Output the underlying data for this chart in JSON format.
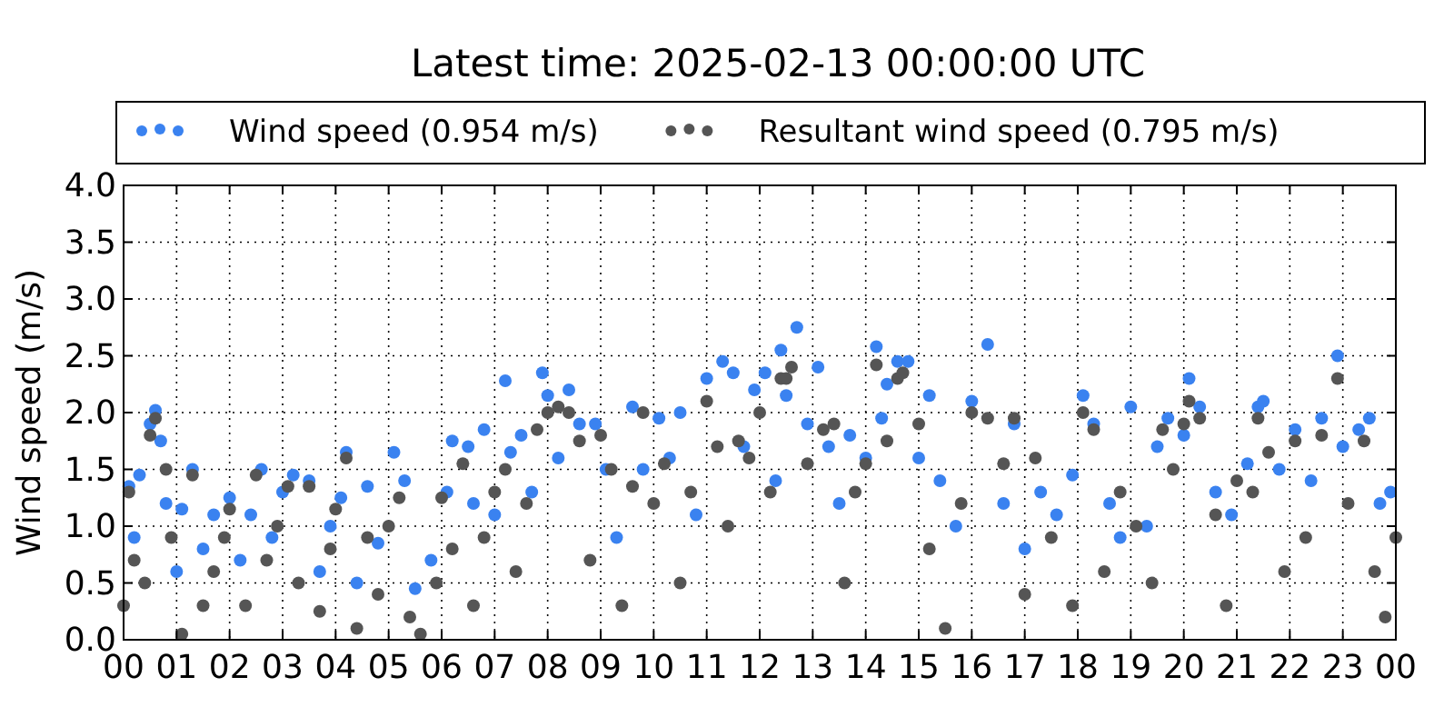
{
  "chart_data": {
    "type": "scatter",
    "title": "Latest time: 2025-02-13 00:00:00 UTC",
    "ylabel": "Wind speed (m/s)",
    "xlim": [
      0,
      24
    ],
    "xticks": [
      {
        "value": 0,
        "label": "00"
      },
      {
        "value": 1,
        "label": "01"
      },
      {
        "value": 2,
        "label": "02"
      },
      {
        "value": 3,
        "label": "03"
      },
      {
        "value": 4,
        "label": "04"
      },
      {
        "value": 5,
        "label": "05"
      },
      {
        "value": 6,
        "label": "06"
      },
      {
        "value": 7,
        "label": "07"
      },
      {
        "value": 8,
        "label": "08"
      },
      {
        "value": 9,
        "label": "09"
      },
      {
        "value": 10,
        "label": "10"
      },
      {
        "value": 11,
        "label": "11"
      },
      {
        "value": 12,
        "label": "12"
      },
      {
        "value": 13,
        "label": "13"
      },
      {
        "value": 14,
        "label": "14"
      },
      {
        "value": 15,
        "label": "15"
      },
      {
        "value": 16,
        "label": "16"
      },
      {
        "value": 17,
        "label": "17"
      },
      {
        "value": 18,
        "label": "18"
      },
      {
        "value": 19,
        "label": "19"
      },
      {
        "value": 20,
        "label": "20"
      },
      {
        "value": 21,
        "label": "21"
      },
      {
        "value": 22,
        "label": "22"
      },
      {
        "value": 23,
        "label": "23"
      },
      {
        "value": 24,
        "label": "00"
      }
    ],
    "ylim": [
      0,
      4
    ],
    "yticks": [
      {
        "value": 0,
        "label": "0.0"
      },
      {
        "value": 0.5,
        "label": "0.5"
      },
      {
        "value": 1,
        "label": "1.0"
      },
      {
        "value": 1.5,
        "label": "1.5"
      },
      {
        "value": 2,
        "label": "2.0"
      },
      {
        "value": 2.5,
        "label": "2.5"
      },
      {
        "value": 3,
        "label": "3.0"
      },
      {
        "value": 3.5,
        "label": "3.5"
      },
      {
        "value": 4,
        "label": "4.0"
      }
    ],
    "grid": true,
    "legend": "top",
    "marker": "circle",
    "series": [
      {
        "name": "Wind speed (0.954 m/s)",
        "color": "#3a82f0",
        "x": [
          0.1,
          0.2,
          0.3,
          0.5,
          0.6,
          0.7,
          0.8,
          1.0,
          1.1,
          1.3,
          1.5,
          1.7,
          2.0,
          2.2,
          2.4,
          2.6,
          2.8,
          3.0,
          3.2,
          3.5,
          3.7,
          3.9,
          4.1,
          4.2,
          4.4,
          4.6,
          4.8,
          5.1,
          5.3,
          5.5,
          5.8,
          6.1,
          6.2,
          6.5,
          6.6,
          6.8,
          7.0,
          7.2,
          7.3,
          7.5,
          7.7,
          7.9,
          8.0,
          8.2,
          8.4,
          8.6,
          8.9,
          9.1,
          9.3,
          9.6,
          9.8,
          10.1,
          10.3,
          10.5,
          10.8,
          11.0,
          11.3,
          11.5,
          11.7,
          11.9,
          12.1,
          12.3,
          12.4,
          12.5,
          12.7,
          12.9,
          13.1,
          13.3,
          13.5,
          13.7,
          14.0,
          14.2,
          14.3,
          14.4,
          14.6,
          14.8,
          15.0,
          15.2,
          15.4,
          15.7,
          16.0,
          16.3,
          16.6,
          16.8,
          17.0,
          17.3,
          17.6,
          17.9,
          18.1,
          18.3,
          18.6,
          18.8,
          19.0,
          19.3,
          19.5,
          19.7,
          20.0,
          20.1,
          20.3,
          20.6,
          20.9,
          21.2,
          21.4,
          21.5,
          21.8,
          22.1,
          22.4,
          22.6,
          22.9,
          23.0,
          23.3,
          23.5,
          23.7,
          23.9
        ],
        "values": [
          1.35,
          0.9,
          1.45,
          1.9,
          2.02,
          1.75,
          1.2,
          0.6,
          1.15,
          1.5,
          0.8,
          1.1,
          1.25,
          0.7,
          1.1,
          1.5,
          0.9,
          1.3,
          1.45,
          1.4,
          0.6,
          1.0,
          1.25,
          1.65,
          0.5,
          1.35,
          0.85,
          1.65,
          1.4,
          0.45,
          0.7,
          1.3,
          1.75,
          1.7,
          1.2,
          1.85,
          1.1,
          2.28,
          1.65,
          1.8,
          1.3,
          2.35,
          2.15,
          1.6,
          2.2,
          1.9,
          1.9,
          1.5,
          0.9,
          2.05,
          1.5,
          1.95,
          1.6,
          2.0,
          1.1,
          2.3,
          2.45,
          2.35,
          1.7,
          2.2,
          2.35,
          1.4,
          2.55,
          2.15,
          2.75,
          1.9,
          2.4,
          1.7,
          1.2,
          1.8,
          1.6,
          2.58,
          1.95,
          2.25,
          2.45,
          2.45,
          1.6,
          2.15,
          1.4,
          1.0,
          2.1,
          2.6,
          1.2,
          1.9,
          0.8,
          1.3,
          1.1,
          1.45,
          2.15,
          1.9,
          1.2,
          0.9,
          2.05,
          1.0,
          1.7,
          1.95,
          1.8,
          2.3,
          2.05,
          1.3,
          1.1,
          1.55,
          2.05,
          2.1,
          1.5,
          1.85,
          1.4,
          1.95,
          2.5,
          1.7,
          1.85,
          1.95,
          1.2,
          1.3
        ]
      },
      {
        "name": "Resultant wind speed (0.795 m/s)",
        "color": "#555555",
        "x": [
          0.0,
          0.1,
          0.2,
          0.4,
          0.5,
          0.6,
          0.8,
          0.9,
          1.1,
          1.3,
          1.5,
          1.7,
          1.9,
          2.0,
          2.3,
          2.5,
          2.7,
          2.9,
          3.1,
          3.3,
          3.5,
          3.7,
          3.9,
          4.0,
          4.2,
          4.4,
          4.6,
          4.8,
          5.0,
          5.2,
          5.4,
          5.6,
          5.9,
          6.0,
          6.2,
          6.4,
          6.6,
          6.8,
          7.0,
          7.2,
          7.4,
          7.6,
          7.8,
          8.0,
          8.2,
          8.4,
          8.6,
          8.8,
          9.0,
          9.2,
          9.4,
          9.6,
          9.8,
          10.0,
          10.2,
          10.5,
          10.7,
          11.0,
          11.2,
          11.4,
          11.6,
          11.8,
          12.0,
          12.2,
          12.4,
          12.5,
          12.6,
          12.9,
          13.2,
          13.4,
          13.6,
          13.8,
          14.0,
          14.2,
          14.4,
          14.6,
          14.7,
          15.0,
          15.2,
          15.5,
          15.8,
          16.0,
          16.3,
          16.6,
          16.8,
          17.0,
          17.2,
          17.5,
          17.9,
          18.1,
          18.3,
          18.5,
          18.8,
          19.1,
          19.4,
          19.6,
          19.8,
          20.0,
          20.1,
          20.3,
          20.6,
          20.8,
          21.0,
          21.3,
          21.4,
          21.6,
          21.9,
          22.1,
          22.3,
          22.6,
          22.9,
          23.1,
          23.4,
          23.6,
          23.8,
          24.0
        ],
        "values": [
          0.3,
          1.3,
          0.7,
          0.5,
          1.8,
          1.95,
          1.5,
          0.9,
          0.05,
          1.45,
          0.3,
          0.6,
          0.9,
          1.15,
          0.3,
          1.45,
          0.7,
          1.0,
          1.35,
          0.5,
          1.35,
          0.25,
          0.8,
          1.15,
          1.6,
          0.1,
          0.9,
          0.4,
          1.0,
          1.25,
          0.2,
          0.05,
          0.5,
          1.25,
          0.8,
          1.55,
          0.3,
          0.9,
          1.3,
          1.5,
          0.6,
          1.2,
          1.85,
          2.0,
          2.05,
          2.0,
          1.75,
          0.7,
          1.8,
          1.5,
          0.3,
          1.35,
          2.0,
          1.2,
          1.55,
          0.5,
          1.3,
          2.1,
          1.7,
          1.0,
          1.75,
          1.6,
          2.0,
          1.3,
          2.3,
          2.3,
          2.4,
          1.55,
          1.85,
          1.9,
          0.5,
          1.3,
          1.55,
          2.42,
          1.75,
          2.3,
          2.35,
          1.9,
          0.8,
          0.1,
          1.2,
          2.0,
          1.95,
          1.55,
          1.95,
          0.4,
          1.6,
          0.9,
          0.3,
          2.0,
          1.85,
          0.6,
          1.3,
          1.0,
          0.5,
          1.85,
          1.5,
          1.9,
          2.1,
          1.95,
          1.1,
          0.3,
          1.4,
          1.3,
          1.95,
          1.65,
          0.6,
          1.75,
          0.9,
          1.8,
          2.3,
          1.2,
          1.75,
          0.6,
          0.2,
          0.9
        ]
      }
    ]
  }
}
